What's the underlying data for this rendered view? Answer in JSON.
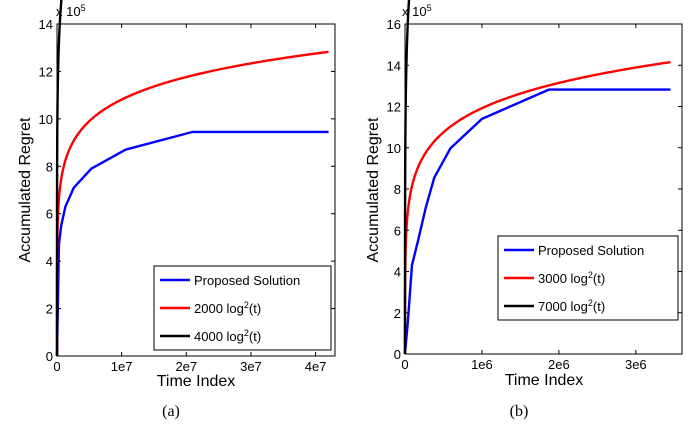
{
  "chart_data": [
    {
      "type": "line",
      "panel_label": "(a)",
      "xlabel": "Time Index",
      "ylabel": "Accumulated Regret",
      "xlim": [
        0,
        43000000
      ],
      "ylim": [
        0,
        1400000
      ],
      "x_ticks": [
        0,
        10000000,
        20000000,
        30000000,
        40000000
      ],
      "x_tick_labels": [
        "0",
        "1e7",
        "2e7",
        "3e7",
        "4e7"
      ],
      "y_ticks": [
        0,
        200000,
        400000,
        600000,
        800000,
        1000000,
        1200000,
        1400000
      ],
      "y_tick_labels": [
        "0",
        "2",
        "4",
        "6",
        "8",
        "10",
        "12",
        "14"
      ],
      "y_multiplier": "x 10",
      "y_multiplier_exp": "5",
      "legend_position": "bottom-right",
      "series": [
        {
          "name": "Proposed Solution",
          "color": "#0000ff",
          "kind": "step",
          "x": [
            0,
            300000,
            300000,
            650000,
            650000,
            1300000,
            1300000,
            2600000,
            2600000,
            5300000,
            5300000,
            10600000,
            10600000,
            21000000,
            21000000,
            42000000
          ],
          "y": [
            0,
            470000,
            470000,
            550000,
            550000,
            630000,
            630000,
            710000,
            710000,
            790000,
            790000,
            870000,
            870000,
            945000,
            945000,
            945000
          ]
        },
        {
          "name": "2000 log",
          "name_sup": "2",
          "name_suffix": "(t)",
          "color": "#ff0000",
          "kind": "log2",
          "coef": 2000,
          "x_max": 42000000
        },
        {
          "name": "4000 log",
          "name_sup": "2",
          "name_suffix": "(t)",
          "color": "#000000",
          "kind": "log2",
          "coef": 4000,
          "x_max": 42000000
        }
      ]
    },
    {
      "type": "line",
      "panel_label": "(b)",
      "xlabel": "Time Index",
      "ylabel": "Accumulated Regret",
      "xlim": [
        0,
        3600000
      ],
      "ylim": [
        0,
        1600000
      ],
      "x_ticks": [
        0,
        1000000,
        2000000,
        3000000
      ],
      "x_tick_labels": [
        "0",
        "1e6",
        "2e6",
        "3e6"
      ],
      "y_ticks": [
        0,
        200000,
        400000,
        600000,
        800000,
        1000000,
        1200000,
        1400000,
        1600000
      ],
      "y_tick_labels": [
        "0",
        "2",
        "4",
        "6",
        "8",
        "10",
        "12",
        "14",
        "16"
      ],
      "y_multiplier": "x 10",
      "y_multiplier_exp": "5",
      "legend_position": "bottom-right",
      "series": [
        {
          "name": "Proposed Solution",
          "color": "#0000ff",
          "kind": "step",
          "x": [
            0,
            40000,
            40000,
            90000,
            90000,
            170000,
            170000,
            270000,
            270000,
            380000,
            380000,
            590000,
            590000,
            1000000,
            1000000,
            1870000,
            1870000,
            3450000
          ],
          "y": [
            0,
            170000,
            170000,
            430000,
            430000,
            550000,
            550000,
            710000,
            710000,
            855000,
            855000,
            997000,
            997000,
            1140000,
            1140000,
            1282000,
            1282000,
            1282000
          ]
        },
        {
          "name": "3000 log",
          "name_sup": "2",
          "name_suffix": "(t)",
          "color": "#ff0000",
          "kind": "log2",
          "coef": 3000,
          "x_max": 3450000
        },
        {
          "name": "7000 log",
          "name_sup": "2",
          "name_suffix": "(t)",
          "color": "#000000",
          "kind": "log2",
          "coef": 7000,
          "x_max": 3450000
        }
      ]
    }
  ]
}
